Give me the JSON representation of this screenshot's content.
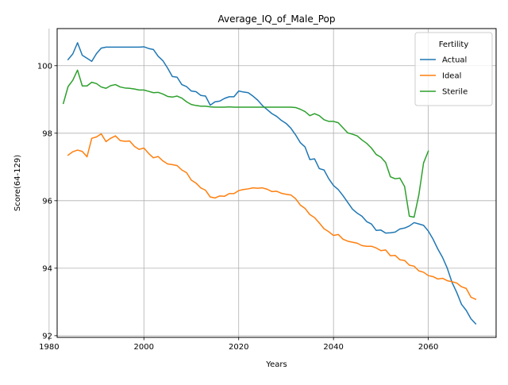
{
  "chart_data": {
    "type": "line",
    "title": "Average_IQ_of_Male_Pop",
    "xlabel": "Years",
    "ylabel": "Score(64-129)",
    "xlim": [
      1981.7,
      2074.3
    ],
    "ylim": [
      91.95,
      101.1
    ],
    "xticks": [
      1980,
      2000,
      2020,
      2040,
      2060
    ],
    "yticks": [
      92,
      94,
      96,
      98,
      100
    ],
    "grid": true,
    "legend": {
      "title": "Fertility",
      "placement": "top-right"
    },
    "series": [
      {
        "name": "Actual",
        "color": "#1f77b4",
        "points": [
          [
            1984,
            100.18
          ],
          [
            1985,
            100.35
          ],
          [
            1986,
            100.68
          ],
          [
            1987,
            100.31
          ],
          [
            1988,
            100.22
          ],
          [
            1989,
            100.13
          ],
          [
            1990,
            100.36
          ],
          [
            1991,
            100.52
          ],
          [
            1992,
            100.55
          ],
          [
            1993,
            100.55
          ],
          [
            1994,
            100.55
          ],
          [
            1995,
            100.55
          ],
          [
            1996,
            100.55
          ],
          [
            1997,
            100.55
          ],
          [
            1998,
            100.55
          ],
          [
            1999,
            100.55
          ],
          [
            2000,
            100.56
          ],
          [
            2001,
            100.51
          ],
          [
            2002,
            100.48
          ],
          [
            2003,
            100.28
          ],
          [
            2004,
            100.15
          ],
          [
            2005,
            99.93
          ],
          [
            2006,
            99.68
          ],
          [
            2007,
            99.66
          ],
          [
            2008,
            99.44
          ],
          [
            2009,
            99.38
          ],
          [
            2010,
            99.25
          ],
          [
            2011,
            99.23
          ],
          [
            2012,
            99.12
          ],
          [
            2013,
            99.1
          ],
          [
            2014,
            98.83
          ],
          [
            2015,
            98.93
          ],
          [
            2016,
            98.95
          ],
          [
            2017,
            99.03
          ],
          [
            2018,
            99.08
          ],
          [
            2019,
            99.08
          ],
          [
            2020,
            99.25
          ],
          [
            2021,
            99.22
          ],
          [
            2022,
            99.2
          ],
          [
            2023,
            99.1
          ],
          [
            2024,
            98.98
          ],
          [
            2025,
            98.82
          ],
          [
            2026,
            98.7
          ],
          [
            2027,
            98.58
          ],
          [
            2028,
            98.5
          ],
          [
            2029,
            98.38
          ],
          [
            2030,
            98.29
          ],
          [
            2031,
            98.15
          ],
          [
            2032,
            97.95
          ],
          [
            2033,
            97.72
          ],
          [
            2034,
            97.59
          ],
          [
            2035,
            97.22
          ],
          [
            2036,
            97.24
          ],
          [
            2037,
            96.95
          ],
          [
            2038,
            96.91
          ],
          [
            2039,
            96.65
          ],
          [
            2040,
            96.45
          ],
          [
            2041,
            96.33
          ],
          [
            2042,
            96.15
          ],
          [
            2043,
            95.95
          ],
          [
            2044,
            95.75
          ],
          [
            2045,
            95.63
          ],
          [
            2046,
            95.54
          ],
          [
            2047,
            95.38
          ],
          [
            2048,
            95.31
          ],
          [
            2049,
            95.12
          ],
          [
            2050,
            95.13
          ],
          [
            2051,
            95.04
          ],
          [
            2052,
            95.05
          ],
          [
            2053,
            95.07
          ],
          [
            2054,
            95.16
          ],
          [
            2055,
            95.19
          ],
          [
            2056,
            95.25
          ],
          [
            2057,
            95.35
          ],
          [
            2058,
            95.31
          ],
          [
            2059,
            95.27
          ],
          [
            2060,
            95.1
          ],
          [
            2061,
            94.86
          ],
          [
            2062,
            94.57
          ],
          [
            2063,
            94.32
          ],
          [
            2064,
            94.0
          ],
          [
            2065,
            93.58
          ],
          [
            2066,
            93.28
          ],
          [
            2067,
            92.93
          ],
          [
            2068,
            92.75
          ],
          [
            2069,
            92.5
          ],
          [
            2070,
            92.35
          ]
        ]
      },
      {
        "name": "Ideal",
        "color": "#ff7f0e",
        "points": [
          [
            1984,
            97.35
          ],
          [
            1985,
            97.45
          ],
          [
            1986,
            97.5
          ],
          [
            1987,
            97.46
          ],
          [
            1988,
            97.3
          ],
          [
            1989,
            97.85
          ],
          [
            1990,
            97.89
          ],
          [
            1991,
            97.98
          ],
          [
            1992,
            97.75
          ],
          [
            1993,
            97.85
          ],
          [
            1994,
            97.92
          ],
          [
            1995,
            97.78
          ],
          [
            1996,
            97.76
          ],
          [
            1997,
            97.77
          ],
          [
            1998,
            97.61
          ],
          [
            1999,
            97.52
          ],
          [
            2000,
            97.56
          ],
          [
            2001,
            97.4
          ],
          [
            2002,
            97.27
          ],
          [
            2003,
            97.31
          ],
          [
            2004,
            97.18
          ],
          [
            2005,
            97.09
          ],
          [
            2006,
            97.07
          ],
          [
            2007,
            97.04
          ],
          [
            2008,
            96.91
          ],
          [
            2009,
            96.83
          ],
          [
            2010,
            96.61
          ],
          [
            2011,
            96.52
          ],
          [
            2012,
            96.38
          ],
          [
            2013,
            96.31
          ],
          [
            2014,
            96.11
          ],
          [
            2015,
            96.08
          ],
          [
            2016,
            96.14
          ],
          [
            2017,
            96.13
          ],
          [
            2018,
            96.21
          ],
          [
            2019,
            96.21
          ],
          [
            2020,
            96.3
          ],
          [
            2021,
            96.33
          ],
          [
            2022,
            96.35
          ],
          [
            2023,
            96.38
          ],
          [
            2024,
            96.37
          ],
          [
            2025,
            96.38
          ],
          [
            2026,
            96.34
          ],
          [
            2027,
            96.27
          ],
          [
            2028,
            96.28
          ],
          [
            2029,
            96.22
          ],
          [
            2030,
            96.19
          ],
          [
            2031,
            96.17
          ],
          [
            2032,
            96.06
          ],
          [
            2033,
            95.87
          ],
          [
            2034,
            95.77
          ],
          [
            2035,
            95.59
          ],
          [
            2036,
            95.5
          ],
          [
            2037,
            95.34
          ],
          [
            2038,
            95.17
          ],
          [
            2039,
            95.08
          ],
          [
            2040,
            94.97
          ],
          [
            2041,
            95.0
          ],
          [
            2042,
            94.86
          ],
          [
            2043,
            94.8
          ],
          [
            2044,
            94.77
          ],
          [
            2045,
            94.74
          ],
          [
            2046,
            94.67
          ],
          [
            2047,
            94.65
          ],
          [
            2048,
            94.65
          ],
          [
            2049,
            94.6
          ],
          [
            2050,
            94.52
          ],
          [
            2051,
            94.54
          ],
          [
            2052,
            94.37
          ],
          [
            2053,
            94.38
          ],
          [
            2054,
            94.25
          ],
          [
            2055,
            94.23
          ],
          [
            2056,
            94.09
          ],
          [
            2057,
            94.06
          ],
          [
            2058,
            93.92
          ],
          [
            2059,
            93.88
          ],
          [
            2060,
            93.78
          ],
          [
            2061,
            93.75
          ],
          [
            2062,
            93.68
          ],
          [
            2063,
            93.7
          ],
          [
            2064,
            93.63
          ],
          [
            2065,
            93.6
          ],
          [
            2066,
            93.56
          ],
          [
            2067,
            93.45
          ],
          [
            2068,
            93.4
          ],
          [
            2069,
            93.14
          ],
          [
            2070,
            93.08
          ]
        ]
      },
      {
        "name": "Sterile",
        "color": "#2ca02c",
        "points": [
          [
            1983,
            98.88
          ],
          [
            1984,
            99.38
          ],
          [
            1985,
            99.57
          ],
          [
            1986,
            99.87
          ],
          [
            1987,
            99.4
          ],
          [
            1988,
            99.4
          ],
          [
            1989,
            99.51
          ],
          [
            1990,
            99.47
          ],
          [
            1991,
            99.37
          ],
          [
            1992,
            99.33
          ],
          [
            1993,
            99.41
          ],
          [
            1994,
            99.44
          ],
          [
            1995,
            99.37
          ],
          [
            1996,
            99.34
          ],
          [
            1997,
            99.33
          ],
          [
            1998,
            99.31
          ],
          [
            1999,
            99.28
          ],
          [
            2000,
            99.28
          ],
          [
            2001,
            99.24
          ],
          [
            2002,
            99.2
          ],
          [
            2003,
            99.21
          ],
          [
            2004,
            99.16
          ],
          [
            2005,
            99.09
          ],
          [
            2006,
            99.07
          ],
          [
            2007,
            99.1
          ],
          [
            2008,
            99.04
          ],
          [
            2009,
            98.93
          ],
          [
            2010,
            98.85
          ],
          [
            2011,
            98.82
          ],
          [
            2012,
            98.8
          ],
          [
            2013,
            98.8
          ],
          [
            2014,
            98.78
          ],
          [
            2015,
            98.77
          ],
          [
            2016,
            98.77
          ],
          [
            2017,
            98.77
          ],
          [
            2018,
            98.78
          ],
          [
            2019,
            98.77
          ],
          [
            2020,
            98.77
          ],
          [
            2021,
            98.77
          ],
          [
            2022,
            98.77
          ],
          [
            2023,
            98.77
          ],
          [
            2024,
            98.77
          ],
          [
            2025,
            98.77
          ],
          [
            2026,
            98.77
          ],
          [
            2027,
            98.77
          ],
          [
            2028,
            98.77
          ],
          [
            2029,
            98.77
          ],
          [
            2030,
            98.77
          ],
          [
            2031,
            98.77
          ],
          [
            2032,
            98.76
          ],
          [
            2033,
            98.71
          ],
          [
            2034,
            98.64
          ],
          [
            2035,
            98.52
          ],
          [
            2036,
            98.58
          ],
          [
            2037,
            98.52
          ],
          [
            2038,
            98.4
          ],
          [
            2039,
            98.35
          ],
          [
            2040,
            98.35
          ],
          [
            2041,
            98.31
          ],
          [
            2042,
            98.16
          ],
          [
            2043,
            98.01
          ],
          [
            2044,
            97.97
          ],
          [
            2045,
            97.92
          ],
          [
            2046,
            97.8
          ],
          [
            2047,
            97.7
          ],
          [
            2048,
            97.56
          ],
          [
            2049,
            97.37
          ],
          [
            2050,
            97.29
          ],
          [
            2051,
            97.13
          ],
          [
            2052,
            96.71
          ],
          [
            2053,
            96.65
          ],
          [
            2054,
            96.67
          ],
          [
            2055,
            96.42
          ],
          [
            2056,
            95.54
          ],
          [
            2057,
            95.51
          ],
          [
            2058,
            96.17
          ],
          [
            2059,
            97.12
          ],
          [
            2060,
            97.47
          ]
        ]
      }
    ]
  }
}
